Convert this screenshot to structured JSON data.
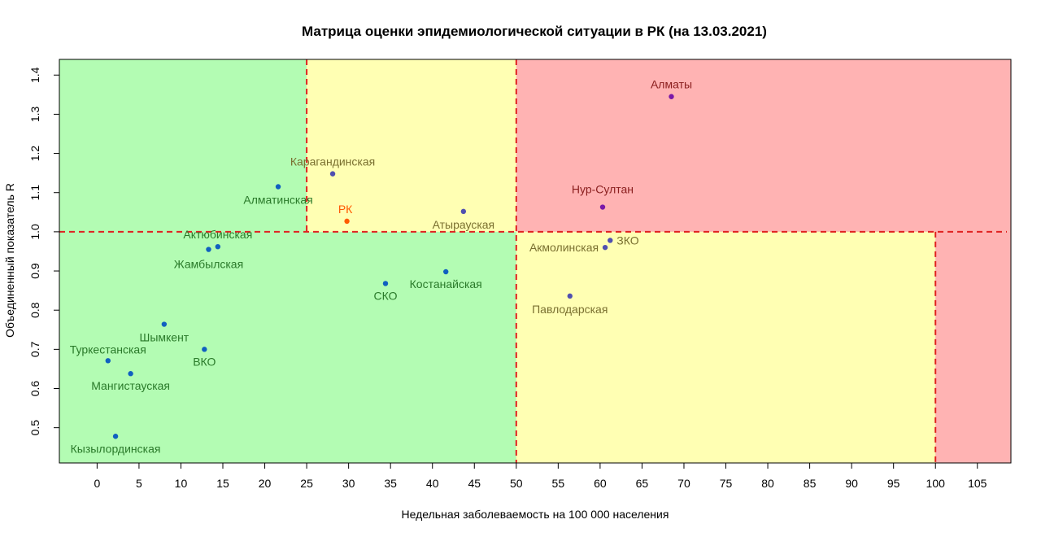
{
  "chart_data": {
    "type": "scatter",
    "title": "Матрица оценки эпидемиологической ситуации в РК (на 13.03.2021)",
    "xlabel": "Недельная заболеваемость на 100 000 населения",
    "ylabel": "Объединенный показатель R",
    "xlim": [
      -4.5,
      109
    ],
    "ylim": [
      0.41,
      1.44
    ],
    "xticks": [
      0,
      5,
      10,
      15,
      20,
      25,
      30,
      35,
      40,
      45,
      50,
      55,
      60,
      65,
      70,
      75,
      80,
      85,
      90,
      95,
      100,
      105
    ],
    "yticks": [
      0.5,
      0.6,
      0.7,
      0.8,
      0.9,
      1.0,
      1.1,
      1.2,
      1.3,
      1.4
    ],
    "zones": {
      "green": "#b3fcb3",
      "yellow": "#ffffb3",
      "red": "#ffb3b3",
      "threshold_line": "#e02020"
    },
    "thresholds": {
      "x1": 25,
      "x2": 50,
      "x3": 100,
      "y": 1.0
    },
    "points": [
      {
        "name": "Алматы",
        "x": 68.5,
        "y": 1.345,
        "color": "#7a18a8",
        "label_color": "#8a1e1e"
      },
      {
        "name": "Нур-Султан",
        "x": 60.3,
        "y": 1.063,
        "color": "#7a18a8",
        "label_color": "#8a1e1e"
      },
      {
        "name": "Карагандинская",
        "x": 28.1,
        "y": 1.148,
        "color": "#5050b0",
        "label_color": "#7a7030"
      },
      {
        "name": "Атырауская",
        "x": 43.7,
        "y": 1.052,
        "color": "#5050b0",
        "label_color": "#7a7030"
      },
      {
        "name": "РК",
        "x": 29.8,
        "y": 1.027,
        "color": "#ff5a00",
        "label_color": "#ff5a00"
      },
      {
        "name": "Алматинская",
        "x": 21.6,
        "y": 1.115,
        "color": "#1060c0",
        "label_color": "#2a7a2a"
      },
      {
        "name": "ЗКО",
        "x": 61.2,
        "y": 0.978,
        "color": "#5050b0",
        "label_color": "#7a7030"
      },
      {
        "name": "Акмолинская",
        "x": 60.6,
        "y": 0.96,
        "color": "#5050b0",
        "label_color": "#7a7030"
      },
      {
        "name": "Павлодарская",
        "x": 56.4,
        "y": 0.836,
        "color": "#5050b0",
        "label_color": "#7a7030"
      },
      {
        "name": "Актюбинская",
        "x": 14.4,
        "y": 0.962,
        "color": "#1060c0",
        "label_color": "#2a7a2a"
      },
      {
        "name": "Жамбылская",
        "x": 13.3,
        "y": 0.955,
        "color": "#1060c0",
        "label_color": "#2a7a2a"
      },
      {
        "name": "Костанайская",
        "x": 41.6,
        "y": 0.898,
        "color": "#1060c0",
        "label_color": "#2a7a2a"
      },
      {
        "name": "СКО",
        "x": 34.4,
        "y": 0.868,
        "color": "#1060c0",
        "label_color": "#2a7a2a"
      },
      {
        "name": "Шымкент",
        "x": 8.0,
        "y": 0.764,
        "color": "#1060c0",
        "label_color": "#2a7a2a"
      },
      {
        "name": "ВКО",
        "x": 12.8,
        "y": 0.7,
        "color": "#1060c0",
        "label_color": "#2a7a2a"
      },
      {
        "name": "Туркестанская",
        "x": 1.3,
        "y": 0.671,
        "color": "#1060c0",
        "label_color": "#2a7a2a"
      },
      {
        "name": "Мангистауская",
        "x": 4.0,
        "y": 0.638,
        "color": "#1060c0",
        "label_color": "#2a7a2a"
      },
      {
        "name": "Кызылординская",
        "x": 2.2,
        "y": 0.478,
        "color": "#1060c0",
        "label_color": "#2a7a2a"
      }
    ]
  }
}
